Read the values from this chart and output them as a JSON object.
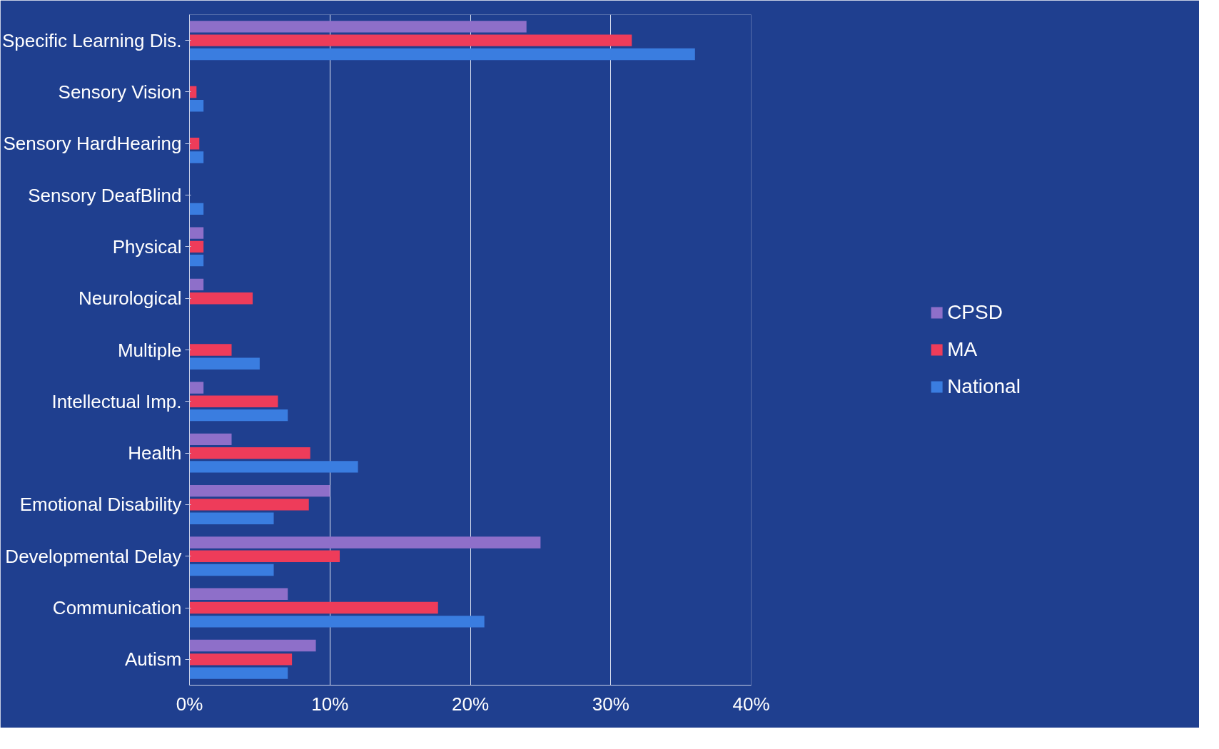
{
  "chart_data": {
    "type": "bar",
    "orientation": "horizontal",
    "categories": [
      "Specific Learning Dis.",
      "Sensory Vision",
      "Sensory HardHearing",
      "Sensory DeafBlind",
      "Physical",
      "Neurological",
      "Multiple",
      "Intellectual Imp.",
      "Health",
      "Emotional Disability",
      "Developmental Delay",
      "Communication",
      "Autism"
    ],
    "series": [
      {
        "name": "CPSD",
        "color": "#8e6fc9",
        "values": [
          24,
          0,
          0,
          0,
          1,
          1,
          0,
          1,
          3,
          10,
          25,
          7,
          9
        ]
      },
      {
        "name": "MA",
        "color": "#ee3c5a",
        "values": [
          31.5,
          0.5,
          0.7,
          0,
          1,
          4.5,
          3,
          6.3,
          8.6,
          8.5,
          10.7,
          17.7,
          7.3
        ]
      },
      {
        "name": "National",
        "color": "#3a7de0",
        "values": [
          36,
          1,
          1,
          1,
          1,
          0,
          5,
          7,
          12,
          6,
          6,
          21,
          7
        ]
      }
    ],
    "xlim": [
      0,
      40
    ],
    "xticks": [
      {
        "value": 0,
        "label": "0%"
      },
      {
        "value": 10,
        "label": "10%"
      },
      {
        "value": 20,
        "label": "20%"
      },
      {
        "value": 30,
        "label": "30%"
      },
      {
        "value": 40,
        "label": "40%"
      }
    ],
    "grid": "x",
    "legend": "right"
  }
}
